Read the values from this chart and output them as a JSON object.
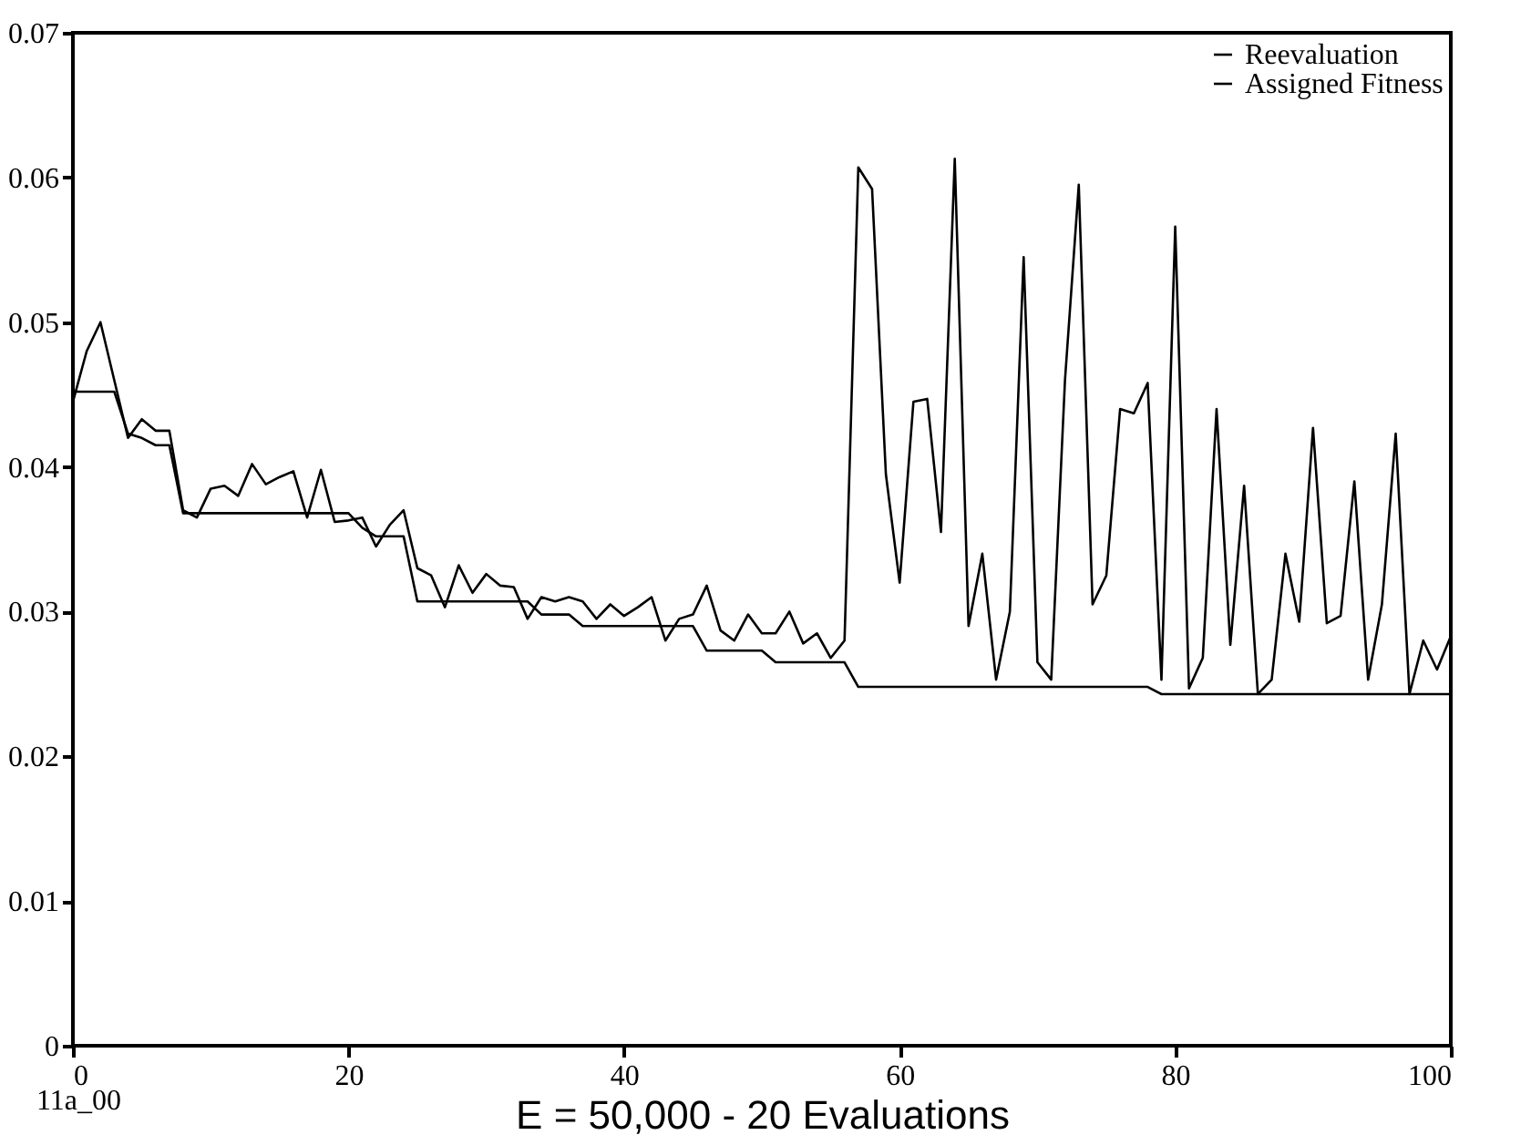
{
  "chart_data": {
    "type": "line",
    "xlabel": "E = 50,000 - 20 Evaluations",
    "annotations": [
      "11a_00"
    ],
    "x": [
      0,
      1,
      2,
      3,
      4,
      5,
      6,
      7,
      8,
      9,
      10,
      11,
      12,
      13,
      14,
      15,
      16,
      17,
      18,
      19,
      20,
      21,
      22,
      23,
      24,
      25,
      26,
      27,
      28,
      29,
      30,
      31,
      32,
      33,
      34,
      35,
      36,
      37,
      38,
      39,
      40,
      41,
      42,
      43,
      44,
      45,
      46,
      47,
      48,
      49,
      50,
      51,
      52,
      53,
      54,
      55,
      56,
      57,
      58,
      59,
      60,
      61,
      62,
      63,
      64,
      65,
      66,
      67,
      68,
      69,
      70,
      71,
      72,
      73,
      74,
      75,
      76,
      77,
      78,
      79,
      80,
      81,
      82,
      83,
      84,
      85,
      86,
      87,
      88,
      89,
      90,
      91,
      92,
      93,
      94,
      95,
      96,
      97,
      98,
      99,
      100
    ],
    "series": [
      {
        "name": "Reevaluation",
        "color": "#000000",
        "values": [
          0.0445,
          0.048,
          0.05,
          0.046,
          0.042,
          0.0433,
          0.0425,
          0.0425,
          0.037,
          0.0365,
          0.0385,
          0.0387,
          0.038,
          0.0402,
          0.0388,
          0.0393,
          0.0397,
          0.0365,
          0.0398,
          0.0362,
          0.0363,
          0.0365,
          0.0345,
          0.036,
          0.037,
          0.033,
          0.0325,
          0.0303,
          0.0332,
          0.0313,
          0.0326,
          0.0318,
          0.0317,
          0.0295,
          0.031,
          0.0307,
          0.031,
          0.0307,
          0.0295,
          0.0305,
          0.0297,
          0.0303,
          0.031,
          0.028,
          0.0295,
          0.0298,
          0.0318,
          0.0287,
          0.028,
          0.0298,
          0.0285,
          0.0285,
          0.03,
          0.0278,
          0.0285,
          0.0268,
          0.028,
          0.0607,
          0.0592,
          0.0395,
          0.032,
          0.0445,
          0.0447,
          0.0355,
          0.0613,
          0.029,
          0.034,
          0.0253,
          0.03,
          0.0545,
          0.0265,
          0.0253,
          0.046,
          0.0595,
          0.0305,
          0.0325,
          0.044,
          0.0437,
          0.0458,
          0.0253,
          0.0566,
          0.0247,
          0.0268,
          0.044,
          0.0277,
          0.0387,
          0.0243,
          0.0253,
          0.034,
          0.0293,
          0.0427,
          0.0292,
          0.0297,
          0.039,
          0.0253,
          0.0305,
          0.0423,
          0.0243,
          0.028,
          0.026,
          0.0283
        ]
      },
      {
        "name": "Assigned Fitness",
        "color": "#000000",
        "values": [
          0.0452,
          0.0452,
          0.0452,
          0.0452,
          0.0423,
          0.042,
          0.0415,
          0.0415,
          0.0368,
          0.0368,
          0.0368,
          0.0368,
          0.0368,
          0.0368,
          0.0368,
          0.0368,
          0.0368,
          0.0368,
          0.0368,
          0.0368,
          0.0368,
          0.0358,
          0.0352,
          0.0352,
          0.0352,
          0.0307,
          0.0307,
          0.0307,
          0.0307,
          0.0307,
          0.0307,
          0.0307,
          0.0307,
          0.0307,
          0.0298,
          0.0298,
          0.0298,
          0.029,
          0.029,
          0.029,
          0.029,
          0.029,
          0.029,
          0.029,
          0.029,
          0.029,
          0.0273,
          0.0273,
          0.0273,
          0.0273,
          0.0273,
          0.0265,
          0.0265,
          0.0265,
          0.0265,
          0.0265,
          0.0265,
          0.0248,
          0.0248,
          0.0248,
          0.0248,
          0.0248,
          0.0248,
          0.0248,
          0.0248,
          0.0248,
          0.0248,
          0.0248,
          0.0248,
          0.0248,
          0.0248,
          0.0248,
          0.0248,
          0.0248,
          0.0248,
          0.0248,
          0.0248,
          0.0248,
          0.0248,
          0.0243,
          0.0243,
          0.0243,
          0.0243,
          0.0243,
          0.0243,
          0.0243,
          0.0243,
          0.0243,
          0.0243,
          0.0243,
          0.0243,
          0.0243,
          0.0243,
          0.0243,
          0.0243,
          0.0243,
          0.0243,
          0.0243,
          0.0243,
          0.0243,
          0.0243
        ]
      }
    ],
    "xlim": [
      0,
      100
    ],
    "xticks": [
      0,
      20,
      40,
      60,
      80,
      100
    ],
    "ylim": [
      0,
      0.07
    ],
    "yticks": [
      0,
      0.01,
      0.02,
      0.03,
      0.04,
      0.05,
      0.06,
      0.07
    ],
    "legend": "top right",
    "grid": false,
    "marker": "none",
    "line_style": "solid"
  }
}
